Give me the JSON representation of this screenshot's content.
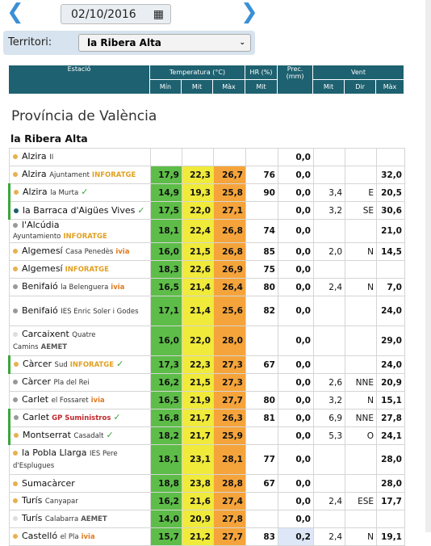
{
  "nav": {
    "date": "02/10/2016",
    "territori_label": "Territori:",
    "territori_value": "la Ribera Alta"
  },
  "header": {
    "station": "Estació",
    "temp": "Temperatura (°C)",
    "hr": "HR (%)",
    "prec": "Prec. (mm)",
    "wind": "Vent",
    "sub": [
      "Mín",
      "Mit",
      "Màx",
      "Mit",
      "Mit",
      "Dir",
      "Màx"
    ]
  },
  "province": "Província de València",
  "region": "la Ribera Alta",
  "temp_colors": [
    "#5dbd48",
    "#f0ea3a",
    "#f5a43b"
  ],
  "rows": [
    {
      "name": "Alzira",
      "sub": "II",
      "tag": null,
      "dot": "#e8b050",
      "verified": false,
      "cells": [
        null,
        null,
        null,
        null,
        "0,0",
        null,
        null,
        null
      ]
    },
    {
      "name": "Alzira",
      "sub": "Ajuntament",
      "tag": "INFORATGE",
      "tag_color": "#e0a020",
      "dot": "#e8b050",
      "verified": false,
      "cells": [
        "17,9",
        "22,3",
        "26,7",
        "76",
        "0,0",
        null,
        null,
        "32,0"
      ]
    },
    {
      "name": "Alzira",
      "sub": "la Murta",
      "tag": null,
      "dot": "#e8b050",
      "verified": true,
      "cells": [
        "14,9",
        "19,3",
        "25,8",
        "90",
        "0,0",
        "3,4",
        "E",
        "20,5"
      ]
    },
    {
      "name": "la Barraca d'Aigües Vives",
      "sub": null,
      "tag": null,
      "dot": "#1f5f6b",
      "verified": true,
      "cells": [
        "17,5",
        "22,0",
        "27,1",
        null,
        "0,0",
        "3,2",
        "SE",
        "30,6"
      ]
    },
    {
      "name": "l'Alcúdia",
      "sub": "Ayuntamiento",
      "tag": "INFORATGE",
      "tag_color": "#e0a020",
      "dot": "#999999",
      "verified": false,
      "cells": [
        "18,1",
        "22,4",
        "26,8",
        "74",
        "0,0",
        null,
        null,
        "21,0"
      ]
    },
    {
      "name": "Algemesí",
      "sub": "Casa Penedès",
      "tag": "ivia",
      "tag_color": "#e07a20",
      "dot": "#e8b050",
      "verified": false,
      "cells": [
        "16,0",
        "21,5",
        "26,8",
        "85",
        "0,0",
        "2,0",
        "N",
        "14,5"
      ]
    },
    {
      "name": "Algemesí",
      "sub": null,
      "tag": "INFORATGE",
      "tag_color": "#e0a020",
      "dot": "#e8b050",
      "verified": false,
      "cells": [
        "18,3",
        "22,6",
        "26,9",
        "75",
        "0,0",
        null,
        null,
        null
      ]
    },
    {
      "name": "Benifaió",
      "sub": "la Belenguera",
      "tag": "ivia",
      "tag_color": "#e07a20",
      "dot": "#999999",
      "verified": false,
      "cells": [
        "16,5",
        "21,4",
        "26,4",
        "80",
        "0,0",
        "2,4",
        "N",
        "7,0"
      ]
    },
    {
      "name": "Benifaió",
      "sub": "IES Enric Soler i Godes",
      "tag": null,
      "dot": "#999999",
      "verified": false,
      "cells": [
        "17,1",
        "21,4",
        "25,6",
        "82",
        "0,0",
        null,
        null,
        "24,0"
      ]
    },
    {
      "name": "Carcaixent",
      "sub": "Quatre Camins",
      "tag": "AEMET",
      "tag_color": "#555555",
      "dot": "#dddddd",
      "verified": false,
      "cells": [
        "16,0",
        "22,0",
        "28,0",
        null,
        "0,0",
        null,
        null,
        "29,0"
      ]
    },
    {
      "name": "Càrcer",
      "sub": "Sud",
      "tag": "INFORATGE",
      "tag_color": "#e0a020",
      "dot": "#e8b050",
      "verified": true,
      "cells": [
        "17,3",
        "22,3",
        "27,3",
        "67",
        "0,0",
        null,
        null,
        "24,0"
      ]
    },
    {
      "name": "Càrcer",
      "sub": "Pla del Rei",
      "tag": null,
      "dot": "#999999",
      "verified": false,
      "cells": [
        "16,2",
        "21,5",
        "27,3",
        null,
        "0,0",
        "2,6",
        "NNE",
        "20,9"
      ]
    },
    {
      "name": "Carlet",
      "sub": "el Fossaret",
      "tag": "ivia",
      "tag_color": "#e07a20",
      "dot": "#999999",
      "verified": false,
      "cells": [
        "16,5",
        "21,9",
        "27,7",
        "80",
        "0,0",
        "3,2",
        "N",
        "15,1"
      ]
    },
    {
      "name": "Carlet",
      "sub": null,
      "tag": "GP Suministros",
      "tag_color": "#c0282d",
      "dot": "#999999",
      "verified": true,
      "cells": [
        "16,8",
        "21,7",
        "26,3",
        "81",
        "0,0",
        "6,9",
        "NNE",
        "27,8"
      ]
    },
    {
      "name": "Montserrat",
      "sub": "Casadalt",
      "tag": null,
      "dot": "#e8b050",
      "verified": true,
      "cells": [
        "18,2",
        "21,7",
        "25,9",
        null,
        "0,0",
        "5,3",
        "O",
        "24,1"
      ]
    },
    {
      "name": "la Pobla Llarga",
      "sub": "IES Pere d'Esplugues",
      "tag": null,
      "dot": "#e8b050",
      "verified": false,
      "cells": [
        "18,1",
        "23,1",
        "28,1",
        "77",
        "0,0",
        null,
        null,
        "28,0"
      ]
    },
    {
      "name": "Sumacàrcer",
      "sub": null,
      "tag": null,
      "dot": "#e8b050",
      "verified": false,
      "cells": [
        "18,8",
        "23,8",
        "28,8",
        "67",
        "0,0",
        null,
        null,
        "28,0"
      ]
    },
    {
      "name": "Turís",
      "sub": "Canyapar",
      "tag": null,
      "dot": "#e8b050",
      "verified": false,
      "cells": [
        "16,2",
        "21,6",
        "27,4",
        null,
        "0,0",
        "2,4",
        "ESE",
        "17,7"
      ]
    },
    {
      "name": "Turís",
      "sub": "Calabarra",
      "tag": "AEMET",
      "tag_color": "#555555",
      "dot": "#dddddd",
      "verified": false,
      "cells": [
        "14,0",
        "20,9",
        "27,8",
        null,
        "0,0",
        null,
        null,
        null
      ]
    },
    {
      "name": "Castelló",
      "sub": "el Pla",
      "tag": "ivia",
      "tag_color": "#e07a20",
      "dot": "#e8b050",
      "verified": false,
      "prec_color": "#dde7f7",
      "cells": [
        "15,7",
        "21,2",
        "27,7",
        "83",
        "0,2",
        "2,4",
        "N",
        "19,1"
      ]
    }
  ]
}
